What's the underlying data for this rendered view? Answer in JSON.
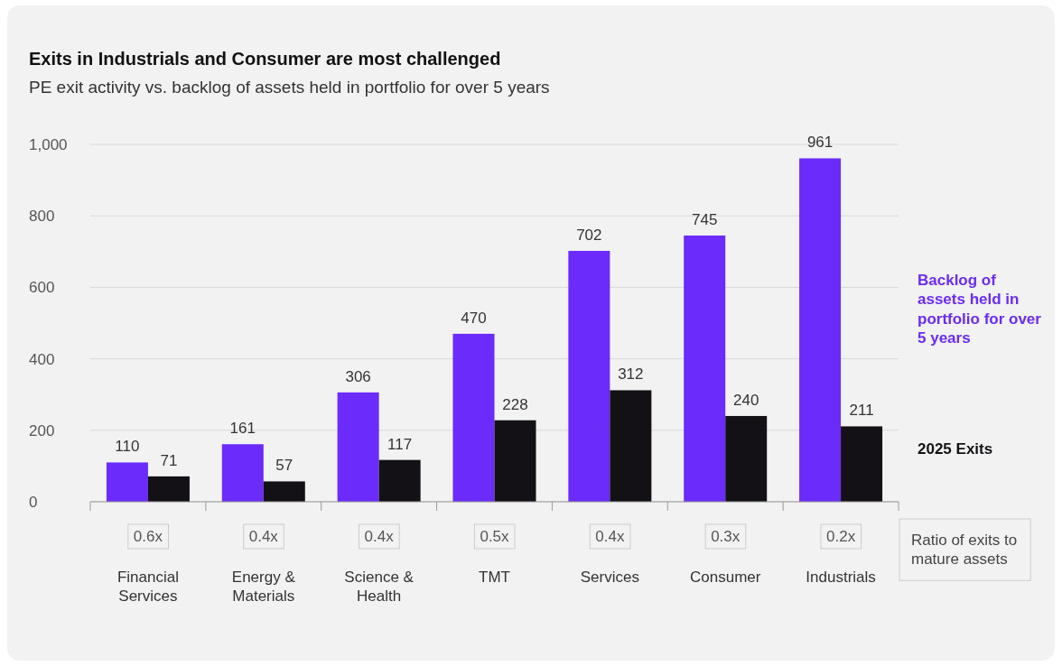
{
  "chart_data": {
    "type": "bar",
    "title": "Exits in Industrials and Consumer are most challenged",
    "subtitle": "PE exit activity vs. backlog of assets held in portfolio for over 5 years",
    "categories": [
      "Financial Services",
      "Energy & Materials",
      "Science & Health",
      "TMT",
      "Services",
      "Consumer",
      "Industrials"
    ],
    "series": [
      {
        "name": "Backlog of assets held in portfolio for over 5 years",
        "color": "#6a2bfb",
        "values": [
          110,
          161,
          306,
          470,
          702,
          745,
          961
        ]
      },
      {
        "name": "2025 Exits",
        "color": "#131115",
        "values": [
          71,
          57,
          117,
          228,
          312,
          240,
          211
        ]
      }
    ],
    "ylim": [
      0,
      1000
    ],
    "yticks": [
      0,
      200,
      400,
      600,
      800,
      {
        "value": 1000,
        "label": "1,000"
      }
    ],
    "grid": "y",
    "legend": "right",
    "data_labels": true,
    "annotations": [
      "0.6x",
      "0.4x",
      "0.4x",
      "0.5x",
      "0.4x",
      "0.3x",
      "0.2x",
      "Ratio of exits to mature assets"
    ]
  }
}
